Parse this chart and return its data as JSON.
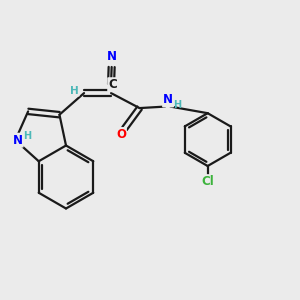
{
  "bg_color": "#ebebeb",
  "bond_color": "#1a1a1a",
  "N_color": "#0000ff",
  "O_color": "#ff0000",
  "Cl_color": "#3cb33c",
  "H_color": "#4db8b8",
  "C_color": "#1a1a1a",
  "line_width": 1.6,
  "font_size_atom": 8.5,
  "fig_size": [
    3.0,
    3.0
  ],
  "dpi": 100,
  "xlim": [
    0,
    10
  ],
  "ylim": [
    0,
    10
  ]
}
